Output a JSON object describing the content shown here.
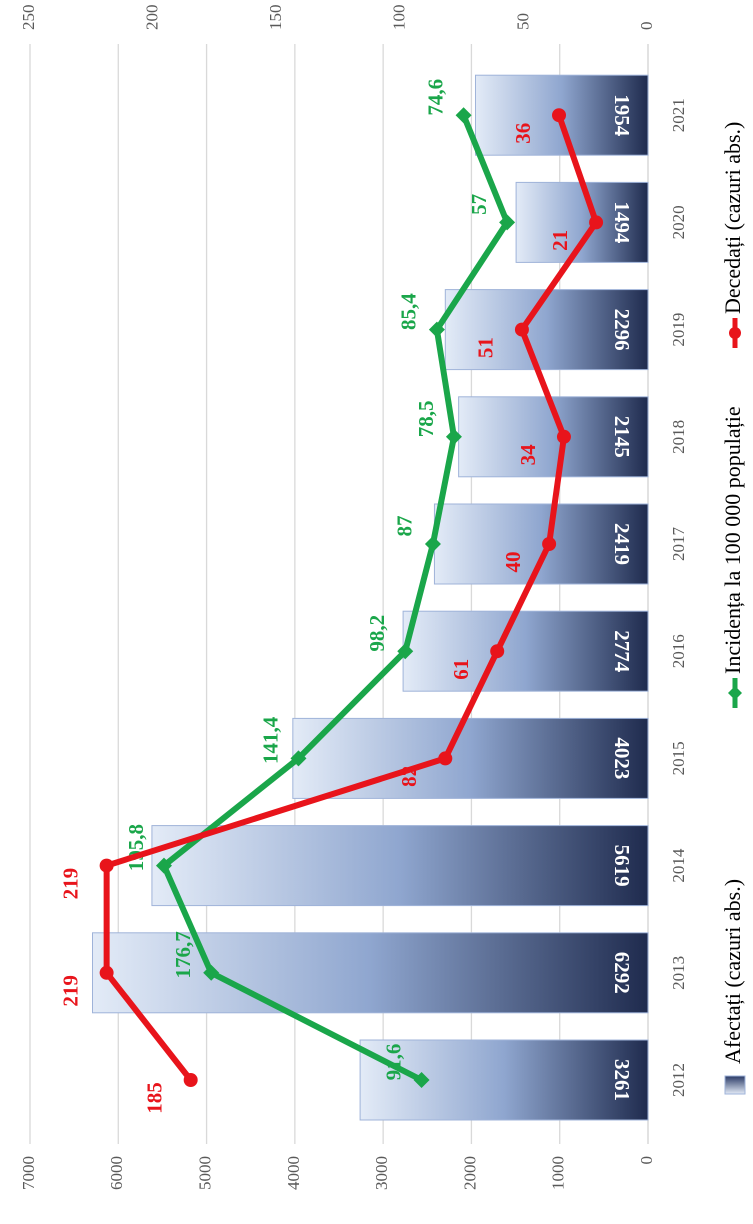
{
  "chart_data": {
    "type": "bar_line",
    "categories": [
      "2012",
      "2013",
      "2014",
      "2015",
      "2016",
      "2017",
      "2018",
      "2019",
      "2020",
      "2021"
    ],
    "series": [
      {
        "name": "Afectați (cazuri abs.)",
        "type": "bar",
        "color": "#1f2b4e",
        "values": [
          3261,
          6292,
          5619,
          4023,
          2774,
          2419,
          2145,
          2296,
          1494,
          1954
        ]
      },
      {
        "name": "Incidența la 100 000 populație",
        "type": "line",
        "axis": "y2",
        "color": "#1aa64a",
        "values": [
          91.6,
          176.7,
          195.8,
          141.4,
          98.2,
          87,
          78.5,
          85.4,
          57,
          74.6
        ],
        "value_labels": [
          "91,6",
          "176,7",
          "195,8",
          "141,4",
          "98,2",
          "87",
          "78,5",
          "85,4",
          "57",
          "74,6"
        ]
      },
      {
        "name": "Decedați (cazuri abs.)",
        "type": "line",
        "axis": "y2",
        "color": "#e8141b",
        "values": [
          185,
          219,
          219,
          82,
          61,
          40,
          34,
          51,
          21,
          36
        ]
      }
    ],
    "ylim": [
      0,
      7000
    ],
    "yticks": [
      0,
      1000,
      2000,
      3000,
      4000,
      5000,
      6000,
      7000
    ],
    "y2lim": [
      0,
      250
    ],
    "y2ticks": [
      0,
      50,
      100,
      150,
      200,
      250
    ],
    "grid": true
  }
}
